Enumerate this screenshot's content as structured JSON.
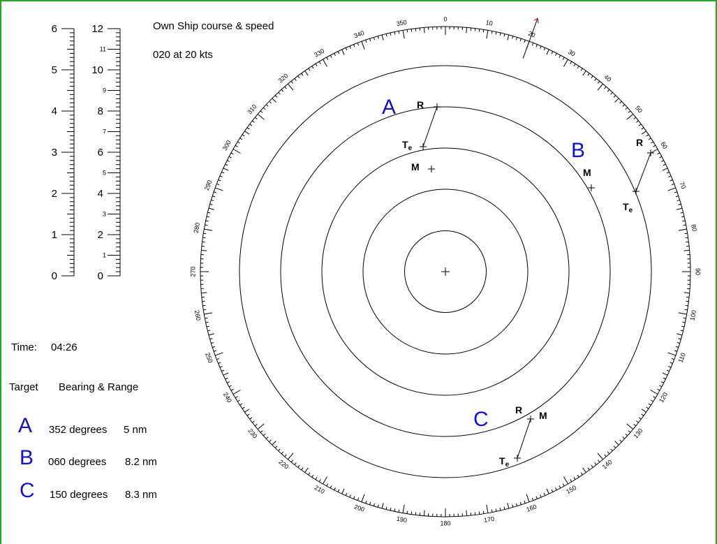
{
  "header": {
    "course_title": "Own Ship course & speed",
    "course_value": "020 at 20 kts"
  },
  "scales": {
    "left": [
      "0",
      "1",
      "2",
      "3",
      "4",
      "5",
      "6"
    ],
    "right": [
      "0",
      "1",
      "2",
      "3",
      "4",
      "5",
      "6",
      "7",
      "8",
      "9",
      "10",
      "11",
      "12"
    ]
  },
  "time": {
    "label": "Time:",
    "value": "04:26"
  },
  "table": {
    "headers": [
      "Target",
      "Bearing & Range"
    ],
    "rows": [
      [
        "A",
        "352 degrees",
        "5 nm"
      ],
      [
        "B",
        "060 degrees",
        "8.2 nm"
      ],
      [
        "C",
        "150 degrees",
        "8.3 nm"
      ]
    ]
  },
  "bearings": [
    "0",
    "10",
    "20",
    "30",
    "40",
    "50",
    "60",
    "70",
    "80",
    "90",
    "100",
    "110",
    "120",
    "130",
    "140",
    "150",
    "160",
    "170",
    "180",
    "190",
    "200",
    "210",
    "220",
    "230",
    "240",
    "250",
    "260",
    "270",
    "280",
    "290",
    "300",
    "310",
    "320",
    "330",
    "340",
    "350"
  ],
  "plot": {
    "targets": [
      {
        "name": "A",
        "r": "R",
        "te": {
          "main": "T",
          "sub": "e"
        },
        "m": "M"
      },
      {
        "name": "B",
        "r": "R",
        "te": {
          "main": "T",
          "sub": "e"
        },
        "m": "M"
      },
      {
        "name": "C",
        "r": "R",
        "te": {
          "main": "T",
          "sub": "e"
        },
        "m": "M"
      }
    ]
  }
}
